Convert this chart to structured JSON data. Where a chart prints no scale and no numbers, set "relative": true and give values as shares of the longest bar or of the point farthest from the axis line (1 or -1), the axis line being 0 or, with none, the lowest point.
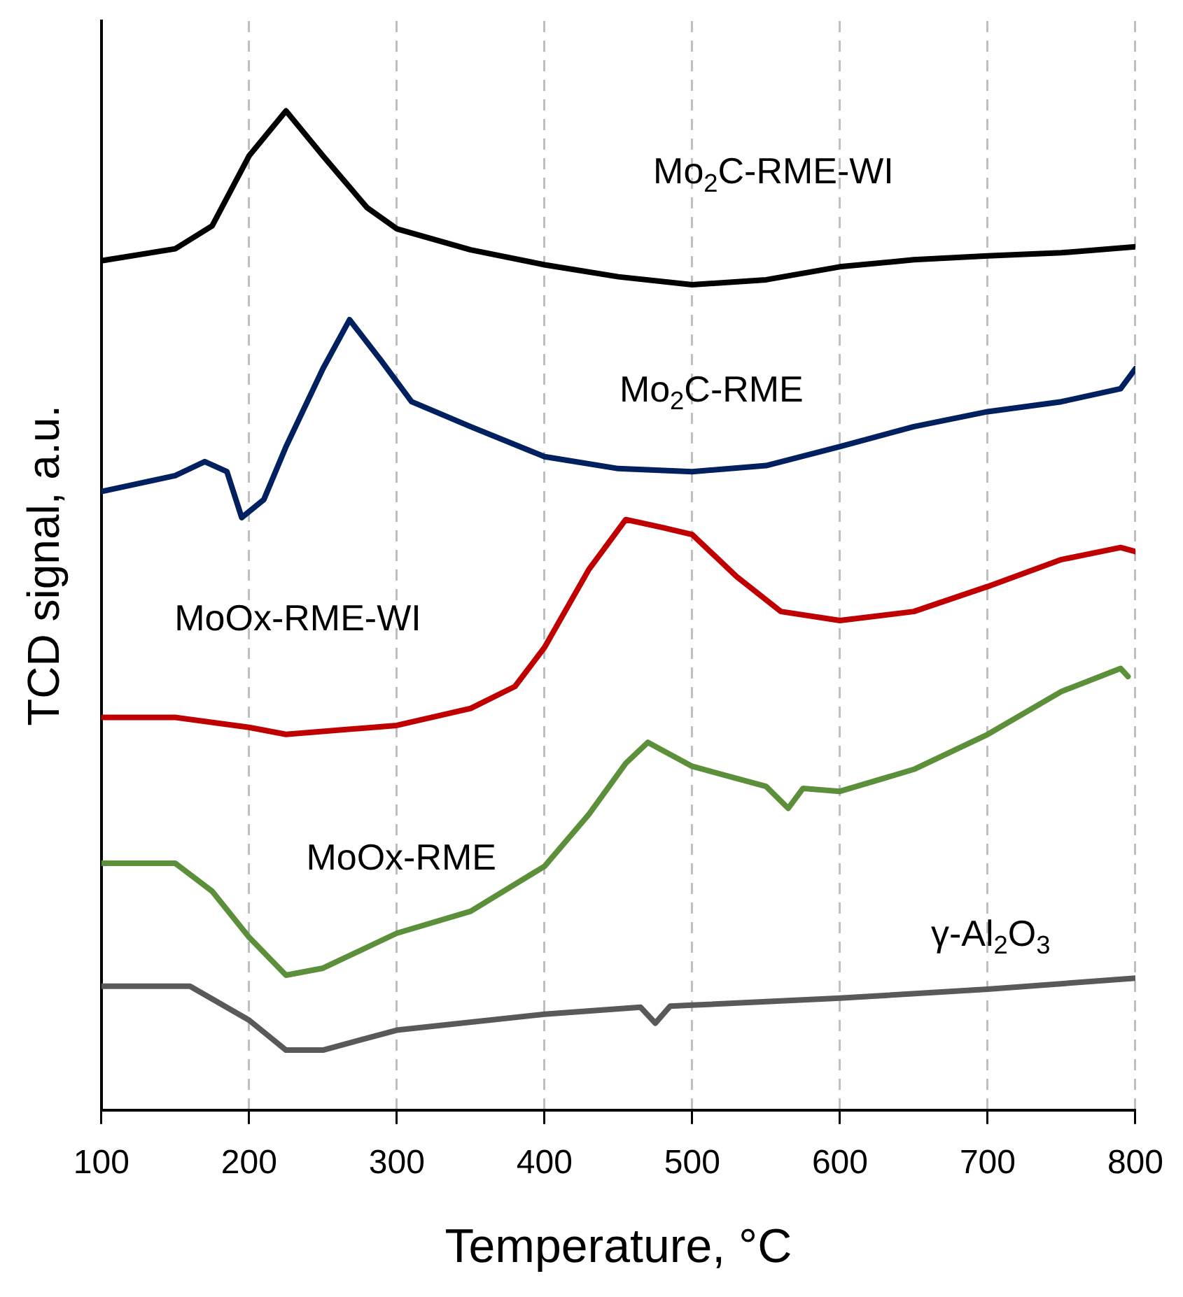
{
  "chart_data": {
    "type": "line",
    "xlabel": "Temperature, °C",
    "ylabel": "TCD signal, a.u.",
    "relative": true,
    "xlim": [
      100,
      800
    ],
    "xticks": [
      100,
      200,
      300,
      400,
      500,
      600,
      700,
      800
    ],
    "grid": "x",
    "legend": false,
    "marker": "none",
    "line_style": "solid",
    "series": [
      {
        "name": "Mo$_{2}$C-RME-WI",
        "color": "#000000",
        "x": [
          100,
          150,
          175,
          200,
          225,
          250,
          280,
          300,
          350,
          400,
          450,
          500,
          550,
          600,
          650,
          700,
          750,
          800
        ],
        "values": [
          0.85,
          0.862,
          0.885,
          0.955,
          1,
          0.955,
          0.903,
          0.882,
          0.861,
          0.846,
          0.834,
          0.826,
          0.831,
          0.844,
          0.851,
          0.855,
          0.858,
          0.864
        ]
      },
      {
        "name": "Mo$_{2}$C-RME",
        "color": "#002060",
        "x": [
          100,
          150,
          170,
          185,
          195,
          210,
          225,
          250,
          268,
          290,
          310,
          350,
          400,
          450,
          500,
          550,
          600,
          650,
          700,
          750,
          790,
          800
        ],
        "values": [
          0.619,
          0.635,
          0.649,
          0.639,
          0.593,
          0.611,
          0.664,
          0.742,
          0.791,
          0.749,
          0.709,
          0.684,
          0.654,
          0.642,
          0.639,
          0.645,
          0.664,
          0.684,
          0.699,
          0.709,
          0.722,
          0.742
        ]
      },
      {
        "name": "MoOx-RME-WI",
        "color": "#c00000",
        "x": [
          100,
          150,
          200,
          225,
          300,
          350,
          380,
          400,
          430,
          455,
          480,
          500,
          530,
          560,
          600,
          650,
          700,
          750,
          790,
          800
        ],
        "values": [
          0.393,
          0.393,
          0.383,
          0.376,
          0.385,
          0.402,
          0.424,
          0.463,
          0.541,
          0.591,
          0.583,
          0.576,
          0.534,
          0.499,
          0.49,
          0.499,
          0.524,
          0.551,
          0.563,
          0.559
        ]
      },
      {
        "name": "MoOx-RME",
        "color": "#5b8f3a",
        "x": [
          100,
          150,
          175,
          200,
          225,
          250,
          300,
          350,
          400,
          430,
          455,
          470,
          500,
          550,
          565,
          575,
          600,
          650,
          700,
          750,
          790,
          795
        ],
        "values": [
          0.247,
          0.247,
          0.219,
          0.173,
          0.135,
          0.142,
          0.177,
          0.199,
          0.244,
          0.296,
          0.347,
          0.368,
          0.344,
          0.324,
          0.302,
          0.322,
          0.319,
          0.341,
          0.376,
          0.419,
          0.442,
          0.434
        ]
      },
      {
        "name": "γ-Al$_{2}$O$_{3}$",
        "color": "#595959",
        "x": [
          100,
          160,
          200,
          225,
          250,
          300,
          400,
          465,
          475,
          485,
          500,
          600,
          700,
          800
        ],
        "values": [
          0.124,
          0.124,
          0.09,
          0.06,
          0.06,
          0.08,
          0.096,
          0.103,
          0.087,
          0.104,
          0.105,
          0.112,
          0.121,
          0.132
        ]
      }
    ]
  }
}
